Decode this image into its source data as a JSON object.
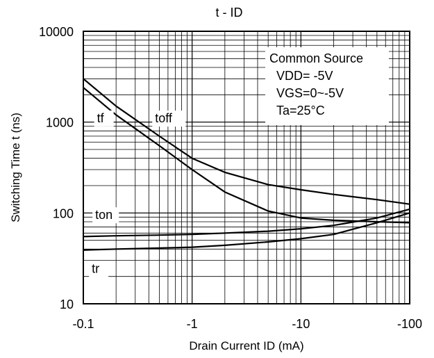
{
  "chart_data": {
    "type": "line",
    "title": "t - ID",
    "xlabel": "Drain Current ID (mA)",
    "ylabel": "Switching Time  t (ns)",
    "x_scale": "log",
    "y_scale": "log",
    "x_reversed_sign": true,
    "xlim": [
      -0.1,
      -100
    ],
    "ylim": [
      10,
      10000
    ],
    "x_ticks": [
      {
        "value": -0.1,
        "label": "-0.1"
      },
      {
        "value": -1,
        "label": "-1"
      },
      {
        "value": -10,
        "label": "-10"
      },
      {
        "value": -100,
        "label": "-100"
      }
    ],
    "y_ticks": [
      {
        "value": 10,
        "label": "10"
      },
      {
        "value": 100,
        "label": "100"
      },
      {
        "value": 1000,
        "label": "1000"
      },
      {
        "value": 10000,
        "label": "10000"
      }
    ],
    "grid": true,
    "legend_box": {
      "placement": "top-right",
      "lines": [
        "Common Source",
        "VDD= -5V",
        "VGS=0~-5V",
        "Ta=25°C"
      ]
    },
    "series": [
      {
        "name": "toff",
        "x": [
          -0.1,
          -0.2,
          -0.5,
          -1,
          -2,
          -5,
          -10,
          -20,
          -50,
          -100
        ],
        "y": [
          3000,
          1500,
          700,
          400,
          280,
          205,
          180,
          160,
          140,
          125
        ]
      },
      {
        "name": "tf",
        "x": [
          -0.1,
          -0.2,
          -0.5,
          -1,
          -2,
          -5,
          -10,
          -20,
          -50,
          -100
        ],
        "y": [
          2400,
          1200,
          550,
          300,
          170,
          105,
          88,
          83,
          80,
          78
        ]
      },
      {
        "name": "ton",
        "x": [
          -0.1,
          -0.2,
          -0.5,
          -1,
          -2,
          -5,
          -10,
          -20,
          -50,
          -100
        ],
        "y": [
          55,
          56,
          57,
          58,
          60,
          63,
          67,
          73,
          88,
          110
        ]
      },
      {
        "name": "tr",
        "x": [
          -0.1,
          -0.2,
          -0.5,
          -1,
          -2,
          -5,
          -10,
          -20,
          -50,
          -100
        ],
        "y": [
          39,
          40,
          41,
          42,
          44,
          48,
          52,
          58,
          78,
          100
        ]
      }
    ],
    "curve_labels": [
      {
        "series": "toff",
        "text": "toff"
      },
      {
        "series": "tf",
        "text": "tf"
      },
      {
        "series": "ton",
        "text": "ton"
      },
      {
        "series": "tr",
        "text": "tr"
      }
    ]
  }
}
